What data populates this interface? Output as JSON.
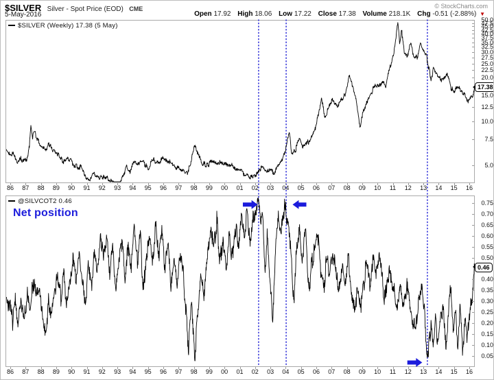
{
  "header": {
    "symbol": "$SILVER",
    "name": "Silver - Spot Price (EOD)",
    "exchange": "CME",
    "copyright": "© StockCharts.com",
    "date": "5-May-2016",
    "quote": {
      "open_label": "Open",
      "open": "17.92",
      "high_label": "High",
      "high": "18.06",
      "low_label": "Low",
      "low": "17.22",
      "close_label": "Close",
      "close": "17.38",
      "volume_label": "Volume",
      "volume": "218.1K",
      "chg_label": "Chg",
      "chg": "-0.51 (-2.88%)",
      "chg_direction": "down"
    }
  },
  "colors": {
    "series": "#000000",
    "annotation_blue": "#1c1cdc",
    "vline_blue": "#3232d8",
    "axis_gray": "#a9a9a9",
    "chg_red": "#c00000"
  },
  "annotations": {
    "vlines_years": [
      2002.23,
      2004.03,
      2013.26
    ],
    "arrows": [
      {
        "panel": 1,
        "dir": "right",
        "from": 2001.2,
        "to": 2002.17,
        "y": 0.745
      },
      {
        "panel": 1,
        "dir": "left",
        "from": 2005.35,
        "to": 2004.45,
        "y": 0.745
      },
      {
        "panel": 1,
        "dir": "right",
        "from": 2011.95,
        "to": 2012.92,
        "y": 0.02
      }
    ]
  },
  "chart_data": [
    {
      "type": "line",
      "legend": "$SILVER (Weekly) 17.38 (5 May)",
      "series_name": "$SILVER weekly close",
      "scale": "log",
      "x_range": [
        1985.75,
        2016.35
      ],
      "ylim": [
        3.8,
        50
      ],
      "current_value": "17.38",
      "x_ticks": [
        "86",
        "87",
        "88",
        "89",
        "90",
        "91",
        "92",
        "93",
        "94",
        "95",
        "96",
        "97",
        "98",
        "99",
        "00",
        "01",
        "02",
        "03",
        "04",
        "05",
        "06",
        "07",
        "08",
        "09",
        "10",
        "11",
        "12",
        "13",
        "14",
        "15",
        "16"
      ],
      "y_ticks": [
        "50.0",
        "47.5",
        "45.0",
        "42.5",
        "40.0",
        "37.5",
        "35.0",
        "32.5",
        "30.0",
        "27.5",
        "25.0",
        "22.5",
        "20.0",
        "15.0",
        "12.5",
        "10.0",
        "7.5",
        "5.0"
      ],
      "series": [
        [
          1985.75,
          6.2
        ],
        [
          1986.0,
          6.05
        ],
        [
          1986.2,
          5.9
        ],
        [
          1986.45,
          5.25
        ],
        [
          1986.7,
          5.55
        ],
        [
          1986.95,
          5.5
        ],
        [
          1987.1,
          5.6
        ],
        [
          1987.25,
          6.6
        ],
        [
          1987.35,
          9.7
        ],
        [
          1987.45,
          7.7
        ],
        [
          1987.6,
          8.5
        ],
        [
          1987.75,
          7.6
        ],
        [
          1987.95,
          6.9
        ],
        [
          1988.15,
          6.6
        ],
        [
          1988.35,
          6.4
        ],
        [
          1988.55,
          7.1
        ],
        [
          1988.75,
          6.4
        ],
        [
          1989.0,
          6.0
        ],
        [
          1989.25,
          5.7
        ],
        [
          1989.5,
          5.2
        ],
        [
          1989.75,
          5.6
        ],
        [
          1990.0,
          5.25
        ],
        [
          1990.3,
          5.0
        ],
        [
          1990.6,
          4.85
        ],
        [
          1990.9,
          4.2
        ],
        [
          1991.2,
          3.95
        ],
        [
          1991.45,
          4.35
        ],
        [
          1991.7,
          4.05
        ],
        [
          1992.0,
          4.2
        ],
        [
          1992.3,
          4.05
        ],
        [
          1992.6,
          3.85
        ],
        [
          1992.9,
          3.72
        ],
        [
          1993.15,
          3.6
        ],
        [
          1993.4,
          4.3
        ],
        [
          1993.6,
          4.95
        ],
        [
          1993.8,
          4.4
        ],
        [
          1994.05,
          5.3
        ],
        [
          1994.3,
          5.1
        ],
        [
          1994.55,
          5.45
        ],
        [
          1994.8,
          5.1
        ],
        [
          1995.05,
          4.75
        ],
        [
          1995.3,
          5.5
        ],
        [
          1995.55,
          5.2
        ],
        [
          1995.8,
          5.35
        ],
        [
          1996.05,
          5.6
        ],
        [
          1996.3,
          5.35
        ],
        [
          1996.55,
          5.1
        ],
        [
          1996.8,
          4.85
        ],
        [
          1997.05,
          4.75
        ],
        [
          1997.3,
          4.65
        ],
        [
          1997.55,
          4.35
        ],
        [
          1997.8,
          5.2
        ],
        [
          1998.05,
          6.9
        ],
        [
          1998.25,
          6.1
        ],
        [
          1998.5,
          5.3
        ],
        [
          1998.75,
          5.0
        ],
        [
          1999.0,
          5.15
        ],
        [
          1999.25,
          5.45
        ],
        [
          1999.5,
          5.25
        ],
        [
          1999.75,
          5.2
        ],
        [
          2000.0,
          5.1
        ],
        [
          2000.25,
          5.05
        ],
        [
          2000.5,
          4.95
        ],
        [
          2000.75,
          4.75
        ],
        [
          2001.0,
          4.55
        ],
        [
          2001.25,
          4.35
        ],
        [
          2001.5,
          4.25
        ],
        [
          2001.75,
          4.1
        ],
        [
          2002.0,
          4.35
        ],
        [
          2002.25,
          4.6
        ],
        [
          2002.5,
          5.0
        ],
        [
          2002.75,
          4.5
        ],
        [
          2003.0,
          4.65
        ],
        [
          2003.25,
          4.5
        ],
        [
          2003.55,
          5.1
        ],
        [
          2003.8,
          5.6
        ],
        [
          2004.0,
          6.5
        ],
        [
          2004.25,
          8.3
        ],
        [
          2004.4,
          5.8
        ],
        [
          2004.65,
          6.4
        ],
        [
          2004.9,
          7.6
        ],
        [
          2005.1,
          6.9
        ],
        [
          2005.35,
          7.1
        ],
        [
          2005.65,
          7.6
        ],
        [
          2005.95,
          8.9
        ],
        [
          2006.15,
          11.5
        ],
        [
          2006.35,
          14.5
        ],
        [
          2006.55,
          10.3
        ],
        [
          2006.8,
          12.6
        ],
        [
          2007.05,
          13.9
        ],
        [
          2007.35,
          12.9
        ],
        [
          2007.65,
          14.0
        ],
        [
          2007.9,
          15.5
        ],
        [
          2008.15,
          20.5
        ],
        [
          2008.4,
          17.2
        ],
        [
          2008.65,
          13.0
        ],
        [
          2008.85,
          9.3
        ],
        [
          2009.1,
          12.2
        ],
        [
          2009.35,
          14.0
        ],
        [
          2009.65,
          16.3
        ],
        [
          2009.9,
          17.8
        ],
        [
          2010.1,
          17.2
        ],
        [
          2010.35,
          18.5
        ],
        [
          2010.55,
          17.8
        ],
        [
          2010.8,
          23.0
        ],
        [
          2011.05,
          29.5
        ],
        [
          2011.2,
          37.0
        ],
        [
          2011.32,
          48.0
        ],
        [
          2011.45,
          34.5
        ],
        [
          2011.58,
          42.0
        ],
        [
          2011.75,
          30.5
        ],
        [
          2011.95,
          27.8
        ],
        [
          2012.15,
          35.0
        ],
        [
          2012.4,
          27.3
        ],
        [
          2012.6,
          27.8
        ],
        [
          2012.8,
          34.3
        ],
        [
          2013.0,
          31.0
        ],
        [
          2013.2,
          28.3
        ],
        [
          2013.35,
          23.2
        ],
        [
          2013.5,
          19.6
        ],
        [
          2013.65,
          23.2
        ],
        [
          2013.85,
          21.3
        ],
        [
          2014.1,
          19.8
        ],
        [
          2014.35,
          19.6
        ],
        [
          2014.55,
          21.0
        ],
        [
          2014.8,
          17.2
        ],
        [
          2015.0,
          15.8
        ],
        [
          2015.25,
          17.2
        ],
        [
          2015.45,
          16.2
        ],
        [
          2015.65,
          15.2
        ],
        [
          2015.85,
          14.3
        ],
        [
          2015.98,
          13.8
        ],
        [
          2016.1,
          15.4
        ],
        [
          2016.22,
          15.2
        ],
        [
          2016.35,
          17.38
        ]
      ]
    },
    {
      "type": "line",
      "legend": "@SILVCOT2 0.46",
      "series_name": "@SILVCOT2 net position",
      "annotation_label": "Net position",
      "scale": "linear",
      "x_range": [
        1985.75,
        2016.35
      ],
      "ylim": [
        0.0,
        0.78
      ],
      "current_value": "0.46",
      "x_ticks": [
        "86",
        "87",
        "88",
        "89",
        "90",
        "91",
        "92",
        "93",
        "94",
        "95",
        "96",
        "97",
        "98",
        "99",
        "00",
        "01",
        "02",
        "03",
        "04",
        "05",
        "06",
        "07",
        "08",
        "09",
        "10",
        "11",
        "12",
        "13",
        "14",
        "15",
        "16"
      ],
      "y_ticks": [
        "0.75",
        "0.70",
        "0.65",
        "0.60",
        "0.55",
        "0.50",
        "0.40",
        "0.35",
        "0.30",
        "0.25",
        "0.20",
        "0.15",
        "0.10",
        "0.05"
      ],
      "series": [
        [
          1985.75,
          0.3
        ],
        [
          1986.0,
          0.27
        ],
        [
          1986.15,
          0.2
        ],
        [
          1986.3,
          0.33
        ],
        [
          1986.5,
          0.17
        ],
        [
          1986.7,
          0.3
        ],
        [
          1986.9,
          0.22
        ],
        [
          1987.1,
          0.34
        ],
        [
          1987.3,
          0.27
        ],
        [
          1987.5,
          0.4
        ],
        [
          1987.7,
          0.3
        ],
        [
          1987.9,
          0.37
        ],
        [
          1988.1,
          0.22
        ],
        [
          1988.3,
          0.14
        ],
        [
          1988.5,
          0.3
        ],
        [
          1988.7,
          0.24
        ],
        [
          1988.9,
          0.34
        ],
        [
          1989.1,
          0.44
        ],
        [
          1989.3,
          0.33
        ],
        [
          1989.5,
          0.42
        ],
        [
          1989.7,
          0.28
        ],
        [
          1989.9,
          0.38
        ],
        [
          1990.1,
          0.49
        ],
        [
          1990.3,
          0.38
        ],
        [
          1990.5,
          0.54
        ],
        [
          1990.7,
          0.42
        ],
        [
          1990.9,
          0.3
        ],
        [
          1991.1,
          0.47
        ],
        [
          1991.3,
          0.36
        ],
        [
          1991.5,
          0.54
        ],
        [
          1991.7,
          0.44
        ],
        [
          1991.9,
          0.59
        ],
        [
          1992.1,
          0.49
        ],
        [
          1992.3,
          0.61
        ],
        [
          1992.5,
          0.44
        ],
        [
          1992.7,
          0.54
        ],
        [
          1992.9,
          0.35
        ],
        [
          1993.1,
          0.49
        ],
        [
          1993.3,
          0.59
        ],
        [
          1993.5,
          0.42
        ],
        [
          1993.7,
          0.55
        ],
        [
          1993.9,
          0.47
        ],
        [
          1994.1,
          0.64
        ],
        [
          1994.3,
          0.5
        ],
        [
          1994.5,
          0.6
        ],
        [
          1994.7,
          0.35
        ],
        [
          1994.9,
          0.52
        ],
        [
          1995.1,
          0.6
        ],
        [
          1995.3,
          0.47
        ],
        [
          1995.5,
          0.64
        ],
        [
          1995.7,
          0.52
        ],
        [
          1995.9,
          0.61
        ],
        [
          1996.1,
          0.45
        ],
        [
          1996.3,
          0.57
        ],
        [
          1996.5,
          0.34
        ],
        [
          1996.7,
          0.51
        ],
        [
          1996.9,
          0.39
        ],
        [
          1997.1,
          0.54
        ],
        [
          1997.3,
          0.44
        ],
        [
          1997.5,
          0.24
        ],
        [
          1997.65,
          0.08
        ],
        [
          1997.85,
          0.3
        ],
        [
          1998.05,
          0.04
        ],
        [
          1998.25,
          0.24
        ],
        [
          1998.45,
          0.45
        ],
        [
          1998.65,
          0.33
        ],
        [
          1998.9,
          0.52
        ],
        [
          1999.1,
          0.64
        ],
        [
          1999.3,
          0.54
        ],
        [
          1999.5,
          0.67
        ],
        [
          1999.7,
          0.49
        ],
        [
          1999.9,
          0.59
        ],
        [
          2000.1,
          0.44
        ],
        [
          2000.3,
          0.61
        ],
        [
          2000.5,
          0.49
        ],
        [
          2000.7,
          0.65
        ],
        [
          2000.9,
          0.54
        ],
        [
          2001.1,
          0.69
        ],
        [
          2001.3,
          0.59
        ],
        [
          2001.5,
          0.71
        ],
        [
          2001.7,
          0.55
        ],
        [
          2001.85,
          0.67
        ],
        [
          2002.0,
          0.71
        ],
        [
          2002.2,
          0.76
        ],
        [
          2002.35,
          0.64
        ],
        [
          2002.5,
          0.71
        ],
        [
          2002.65,
          0.44
        ],
        [
          2002.8,
          0.64
        ],
        [
          2003.0,
          0.38
        ],
        [
          2003.15,
          0.19
        ],
        [
          2003.35,
          0.55
        ],
        [
          2003.55,
          0.69
        ],
        [
          2003.7,
          0.61
        ],
        [
          2003.9,
          0.74
        ],
        [
          2004.05,
          0.71
        ],
        [
          2004.25,
          0.63
        ],
        [
          2004.4,
          0.44
        ],
        [
          2004.55,
          0.27
        ],
        [
          2004.7,
          0.54
        ],
        [
          2004.9,
          0.65
        ],
        [
          2005.1,
          0.49
        ],
        [
          2005.3,
          0.63
        ],
        [
          2005.5,
          0.34
        ],
        [
          2005.7,
          0.49
        ],
        [
          2005.9,
          0.54
        ],
        [
          2006.1,
          0.62
        ],
        [
          2006.3,
          0.44
        ],
        [
          2006.5,
          0.37
        ],
        [
          2006.7,
          0.51
        ],
        [
          2006.9,
          0.44
        ],
        [
          2007.1,
          0.54
        ],
        [
          2007.3,
          0.41
        ],
        [
          2007.5,
          0.34
        ],
        [
          2007.7,
          0.47
        ],
        [
          2007.9,
          0.41
        ],
        [
          2008.1,
          0.49
        ],
        [
          2008.3,
          0.37
        ],
        [
          2008.5,
          0.27
        ],
        [
          2008.7,
          0.34
        ],
        [
          2008.9,
          0.24
        ],
        [
          2009.1,
          0.39
        ],
        [
          2009.3,
          0.47
        ],
        [
          2009.5,
          0.39
        ],
        [
          2009.7,
          0.51
        ],
        [
          2009.9,
          0.44
        ],
        [
          2010.1,
          0.51
        ],
        [
          2010.3,
          0.41
        ],
        [
          2010.5,
          0.31
        ],
        [
          2010.7,
          0.44
        ],
        [
          2010.9,
          0.39
        ],
        [
          2011.1,
          0.34
        ],
        [
          2011.3,
          0.27
        ],
        [
          2011.5,
          0.37
        ],
        [
          2011.7,
          0.29
        ],
        [
          2011.9,
          0.37
        ],
        [
          2012.1,
          0.29
        ],
        [
          2012.3,
          0.21
        ],
        [
          2012.5,
          0.17
        ],
        [
          2012.7,
          0.29
        ],
        [
          2012.9,
          0.37
        ],
        [
          2013.05,
          0.29
        ],
        [
          2013.2,
          0.03
        ],
        [
          2013.35,
          0.1
        ],
        [
          2013.5,
          0.21
        ],
        [
          2013.65,
          0.11
        ],
        [
          2013.8,
          0.24
        ],
        [
          2013.95,
          0.07
        ],
        [
          2014.1,
          0.21
        ],
        [
          2014.3,
          0.29
        ],
        [
          2014.5,
          0.09
        ],
        [
          2014.65,
          0.27
        ],
        [
          2014.8,
          0.37
        ],
        [
          2014.95,
          0.14
        ],
        [
          2015.1,
          0.27
        ],
        [
          2015.25,
          0.11
        ],
        [
          2015.4,
          0.29
        ],
        [
          2015.55,
          0.07
        ],
        [
          2015.7,
          0.21
        ],
        [
          2015.85,
          0.14
        ],
        [
          2016.0,
          0.24
        ],
        [
          2016.1,
          0.34
        ],
        [
          2016.2,
          0.3
        ],
        [
          2016.35,
          0.46
        ]
      ]
    }
  ]
}
